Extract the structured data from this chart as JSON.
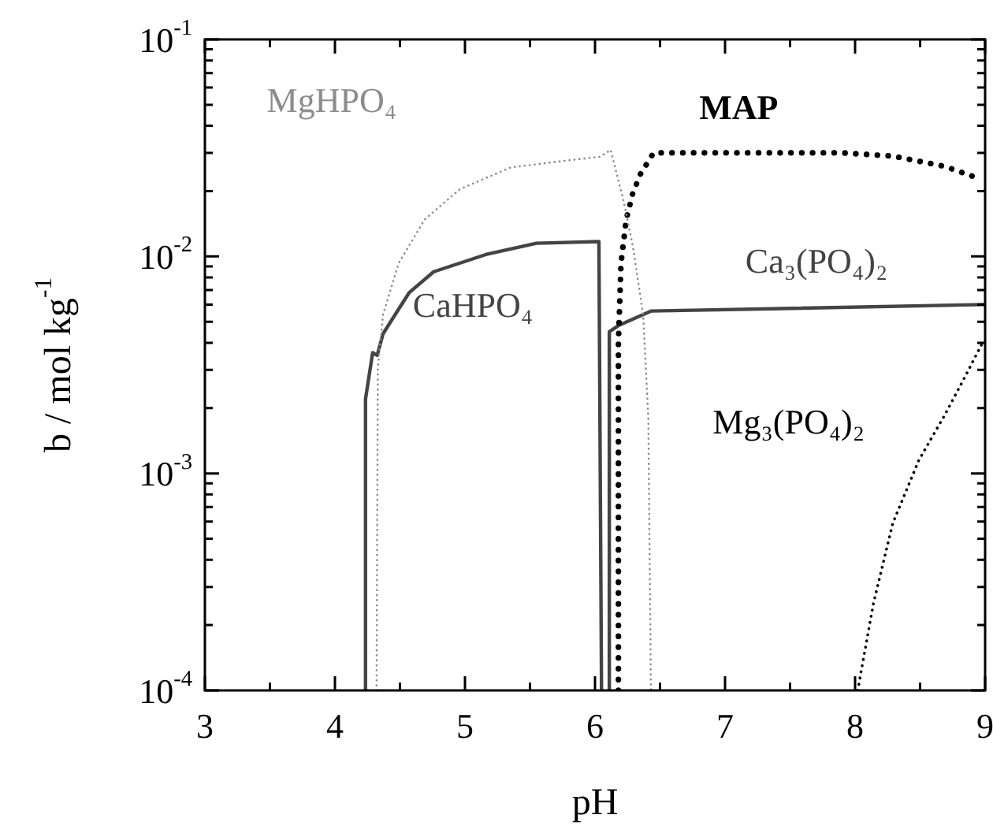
{
  "chart_data": {
    "type": "line",
    "xlabel": "pH",
    "ylabel": "b / mol kg$^{-1}$",
    "log": "y",
    "grid": false,
    "legend": false,
    "marker": "none",
    "xlim": [
      3,
      9
    ],
    "ylim": [
      0.0001,
      0.1
    ],
    "xticks": [
      3,
      {
        "value": 3.5,
        "label": null
      },
      4,
      {
        "value": 4.5,
        "label": null
      },
      5,
      {
        "value": 5.5,
        "label": null
      },
      6,
      {
        "value": 6.5,
        "label": null
      },
      7,
      {
        "value": 7.5,
        "label": null
      },
      8,
      {
        "value": 8.5,
        "label": null
      },
      9
    ],
    "yticks": [
      {
        "value": 0.0001,
        "label": "10$^{-4}$"
      },
      {
        "value": 0.0002,
        "label": null
      },
      {
        "value": 0.0003,
        "label": null
      },
      {
        "value": 0.0004,
        "label": null
      },
      {
        "value": 0.0005,
        "label": null
      },
      {
        "value": 0.0006,
        "label": null
      },
      {
        "value": 0.0007,
        "label": null
      },
      {
        "value": 0.0008,
        "label": null
      },
      {
        "value": 0.0009,
        "label": null
      },
      {
        "value": 0.001,
        "label": "10$^{-3}$"
      },
      {
        "value": 0.002,
        "label": null
      },
      {
        "value": 0.003,
        "label": null
      },
      {
        "value": 0.004,
        "label": null
      },
      {
        "value": 0.005,
        "label": null
      },
      {
        "value": 0.006,
        "label": null
      },
      {
        "value": 0.007,
        "label": null
      },
      {
        "value": 0.008,
        "label": null
      },
      {
        "value": 0.009,
        "label": null
      },
      {
        "value": 0.01,
        "label": "10$^{-2}$"
      },
      {
        "value": 0.02,
        "label": null
      },
      {
        "value": 0.03,
        "label": null
      },
      {
        "value": 0.04,
        "label": null
      },
      {
        "value": 0.05,
        "label": null
      },
      {
        "value": 0.06,
        "label": null
      },
      {
        "value": 0.07,
        "label": null
      },
      {
        "value": 0.08,
        "label": null
      },
      {
        "value": 0.09,
        "label": null
      },
      {
        "value": 0.1,
        "label": "10$^{-1}$"
      }
    ],
    "series": [
      {
        "color": "#8c8c8c",
        "line_style": "dotted",
        "x": [
          4.32,
          4.33,
          4.37,
          4.49,
          4.69,
          4.96,
          5.35,
          5.75,
          6.04,
          6.12,
          6.22,
          6.29,
          6.37,
          6.41,
          6.43
        ],
        "values": [
          0.0001,
          0.0031,
          0.0054,
          0.0093,
          0.0148,
          0.0204,
          0.0257,
          0.0275,
          0.0288,
          0.031,
          0.018,
          0.0112,
          0.0054,
          0.0018,
          0.0001
        ]
      },
      {
        "color": "#444444",
        "line_style": "solid",
        "x": [
          4.235,
          4.235,
          4.29,
          4.325,
          4.37,
          4.57,
          4.76,
          5.16,
          5.55,
          6.03,
          6.05
        ],
        "values": [
          0.0001,
          0.0022,
          0.0036,
          0.0035,
          0.0044,
          0.0068,
          0.0085,
          0.0102,
          0.0115,
          0.0117,
          0.0001
        ]
      },
      {
        "color": "#000000",
        "line_style": "dotted",
        "x": [
          6.18,
          6.18,
          6.2,
          6.24,
          6.29,
          6.35,
          6.45,
          7.12,
          7.9,
          8.29,
          8.69,
          8.94
        ],
        "values": [
          0.0001,
          0.004,
          0.0093,
          0.0148,
          0.0195,
          0.024,
          0.03,
          0.03,
          0.03,
          0.029,
          0.026,
          0.023
        ]
      },
      {
        "color": "#444444",
        "line_style": "solid",
        "x": [
          6.11,
          6.11,
          6.18,
          6.43,
          9
        ],
        "values": [
          0.0001,
          0.0045,
          0.0048,
          0.0056,
          0.006
        ]
      },
      {
        "color": "#000000",
        "line_style": "dotted",
        "x": [
          8.02,
          8.14,
          8.29,
          8.49,
          8.69,
          8.84,
          8.98
        ],
        "values": [
          0.0001,
          0.00025,
          0.00059,
          0.00115,
          0.00186,
          0.00275,
          0.004
        ]
      }
    ],
    "annotations": [
      "MgHPO₄",
      "CaHPO₄",
      "MAP",
      "Ca₃(PO₄)₂",
      "Mg₃(PO₄)₂"
    ]
  }
}
